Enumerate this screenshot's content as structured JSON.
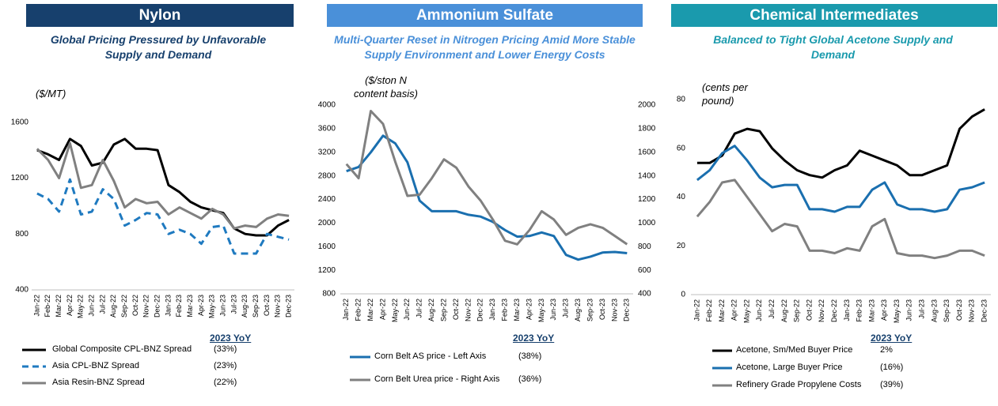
{
  "chart_data": [
    {
      "type": "line",
      "title": "Nylon",
      "subtitle": "Global Pricing Pressured by Unfavorable Supply and Demand",
      "y_axis_label": "($/MT)",
      "categories": [
        "Jan-22",
        "Feb-22",
        "Mar-22",
        "Apr-22",
        "May-22",
        "Jun-22",
        "Jul-22",
        "Aug-22",
        "Sep-22",
        "Oct-22",
        "Nov-22",
        "Dec-22",
        "Jan-23",
        "Feb-23",
        "Mar-23",
        "Apr-23",
        "May-23",
        "Jun-23",
        "Jul-23",
        "Aug-23",
        "Sep-23",
        "Oct-23",
        "Nov-23",
        "Dec-23"
      ],
      "ylim": [
        400,
        1700
      ],
      "yticks": [
        400,
        800,
        1200,
        1600
      ],
      "legend_header": "2023 YoY",
      "color": "#17406d",
      "series": [
        {
          "name": "Global Composite CPL-BNZ Spread",
          "color": "#000000",
          "dashed": false,
          "yoy": "(33%)",
          "values": [
            1400,
            1370,
            1330,
            1480,
            1430,
            1290,
            1310,
            1440,
            1480,
            1410,
            1410,
            1400,
            1150,
            1100,
            1030,
            990,
            970,
            950,
            840,
            800,
            790,
            790,
            860,
            900
          ]
        },
        {
          "name": "Asia CPL-BNZ Spread",
          "color": "#1f7ac0",
          "dashed": true,
          "yoy": "(23%)",
          "values": [
            1090,
            1050,
            960,
            1190,
            940,
            960,
            1120,
            1050,
            860,
            900,
            950,
            940,
            800,
            830,
            800,
            730,
            850,
            860,
            660,
            660,
            660,
            800,
            780,
            760
          ]
        },
        {
          "name": "Asia Resin-BNZ Spread",
          "color": "#808080",
          "dashed": false,
          "yoy": "(22%)",
          "values": [
            1410,
            1330,
            1200,
            1450,
            1130,
            1150,
            1330,
            1180,
            990,
            1050,
            1020,
            1030,
            940,
            990,
            950,
            910,
            980,
            940,
            840,
            860,
            850,
            910,
            940,
            930
          ]
        }
      ]
    },
    {
      "type": "line",
      "title": "Ammonium Sulfate",
      "subtitle": "Multi-Quarter Reset in Nitrogen Pricing Amid More Stable Supply Environment and Lower Energy Costs",
      "y_axis_label": "($/ston N content basis)",
      "categories": [
        "Jan-22",
        "Feb-22",
        "Mar-22",
        "Apr-22",
        "May-22",
        "Jun-22",
        "Jul-22",
        "Aug-22",
        "Sep-22",
        "Oct-22",
        "Nov-22",
        "Dec-22",
        "Jan-23",
        "Feb-23",
        "Mar-23",
        "Apr-23",
        "May-23",
        "Jun-23",
        "Jul-23",
        "Aug-23",
        "Sep-23",
        "Oct-23",
        "Nov-23",
        "Dec-23"
      ],
      "ylim": [
        800,
        4000
      ],
      "yticks": [
        800,
        1200,
        1600,
        2000,
        2400,
        2800,
        3200,
        3600,
        4000
      ],
      "y2lim": [
        400,
        2000
      ],
      "y2ticks": [
        400,
        600,
        800,
        1000,
        1200,
        1400,
        1600,
        1800,
        2000
      ],
      "legend_header": "2023 YoY",
      "color": "#4a90d9",
      "series": [
        {
          "name": "Corn Belt AS price - Left Axis",
          "color": "#1a6faf",
          "dashed": false,
          "yoy": "(38%)",
          "values": [
            2880,
            2950,
            3200,
            3480,
            3350,
            3030,
            2380,
            2200,
            2200,
            2200,
            2140,
            2110,
            2020,
            1880,
            1770,
            1780,
            1840,
            1780,
            1460,
            1380,
            1430,
            1500,
            1510,
            1490
          ]
        },
        {
          "name": "Corn Belt Urea price - Right Axis",
          "color": "#808080",
          "dashed": false,
          "yoy": "(36%)",
          "axis": "y2",
          "values": [
            1500,
            1380,
            1950,
            1840,
            1520,
            1230,
            1240,
            1380,
            1540,
            1470,
            1310,
            1190,
            1030,
            850,
            820,
            940,
            1100,
            1030,
            900,
            960,
            990,
            960,
            890,
            820
          ]
        }
      ]
    },
    {
      "type": "line",
      "title": "Chemical Intermediates",
      "subtitle": "Balanced to Tight Global Acetone Supply and Demand",
      "y_axis_label": "(cents per pound)",
      "categories": [
        "Jan-22",
        "Feb-22",
        "Mar-22",
        "Apr-22",
        "May-22",
        "Jun-22",
        "Jul-22",
        "Aug-22",
        "Sep-22",
        "Oct-22",
        "Nov-22",
        "Dec-22",
        "Jan-23",
        "Feb-23",
        "Mar-23",
        "Apr-23",
        "May-23",
        "Jun-23",
        "Jul-23",
        "Aug-23",
        "Sep-23",
        "Oct-23",
        "Nov-23",
        "Dec-23"
      ],
      "ylim": [
        0,
        80
      ],
      "yticks": [
        0,
        20,
        40,
        60,
        80
      ],
      "legend_header": "2023 YoY",
      "color": "#1a9aad",
      "series": [
        {
          "name": "Acetone, Sm/Med Buyer Price",
          "color": "#000000",
          "dashed": false,
          "yoy": "2%",
          "values": [
            54,
            54,
            57,
            66,
            68,
            67,
            60,
            55,
            51,
            49,
            48,
            51,
            53,
            59,
            57,
            55,
            53,
            49,
            49,
            51,
            53,
            68,
            73,
            76
          ]
        },
        {
          "name": "Acetone, Large Buyer Price",
          "color": "#1a6faf",
          "dashed": false,
          "yoy": "(16%)",
          "values": [
            47,
            51,
            58,
            61,
            55,
            48,
            44,
            45,
            45,
            35,
            35,
            34,
            36,
            36,
            43,
            46,
            37,
            35,
            35,
            34,
            35,
            43,
            44,
            46
          ]
        },
        {
          "name": "Refinery Grade Propylene Costs",
          "color": "#808080",
          "dashed": false,
          "yoy": "(39%)",
          "values": [
            32,
            38,
            46,
            47,
            40,
            33,
            26,
            29,
            28,
            18,
            18,
            17,
            19,
            18,
            28,
            31,
            17,
            16,
            16,
            15,
            16,
            18,
            18,
            16
          ]
        }
      ]
    }
  ]
}
